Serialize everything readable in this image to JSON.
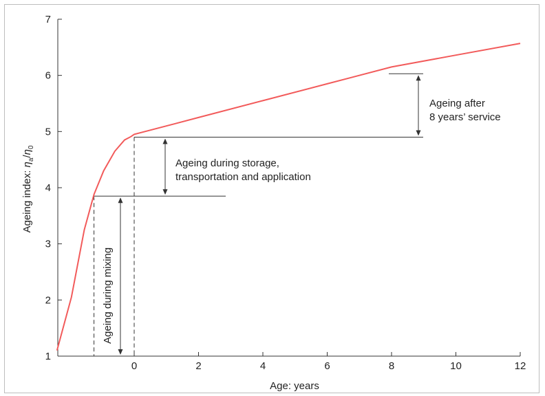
{
  "chart_data": {
    "type": "line",
    "title": "",
    "xlabel": "Age: years",
    "ylabel": "Ageing index: η_a/η_0",
    "ylabel_parts": {
      "main": "Ageing index: ",
      "eta_a": "η",
      "sub_a": "a",
      "slash": "/",
      "eta_0": "η",
      "sub_0": "0"
    },
    "xlim": [
      -2.3,
      12
    ],
    "ylim": [
      1,
      7
    ],
    "x_ticks": [
      0,
      2,
      4,
      6,
      8,
      10,
      12
    ],
    "x_tick_labels": [
      "0",
      "2",
      "4",
      "6",
      "8",
      "10",
      "12"
    ],
    "y_ticks": [
      1,
      2,
      3,
      4,
      5,
      6,
      7
    ],
    "y_tick_labels": [
      "1",
      "2",
      "3",
      "4",
      "5",
      "6",
      "7"
    ],
    "grid": false,
    "line_color": "#f25a5a",
    "series": [
      {
        "x": [
          -2.4,
          -1.95,
          -1.55,
          -1.25,
          -0.95,
          -0.6,
          -0.3,
          -0.1,
          0,
          1,
          2,
          4,
          6,
          8,
          10,
          12
        ],
        "y": [
          1.1,
          2.05,
          3.25,
          3.88,
          4.3,
          4.65,
          4.85,
          4.91,
          4.95,
          5.1,
          5.25,
          5.55,
          5.85,
          6.15,
          6.36,
          6.57
        ]
      }
    ],
    "reference_lines": {
      "mixing_level": 3.85,
      "mixing_x": -1.25,
      "storage_level": 4.9,
      "storage_x": 0,
      "service_level": 6.03
    },
    "annotations": {
      "mixing": "Ageing during mixing",
      "storage_line1": "Ageing during storage,",
      "storage_line2": "transportation and application",
      "service_line1": "Ageing after",
      "service_line2": "8 years’ service"
    }
  }
}
